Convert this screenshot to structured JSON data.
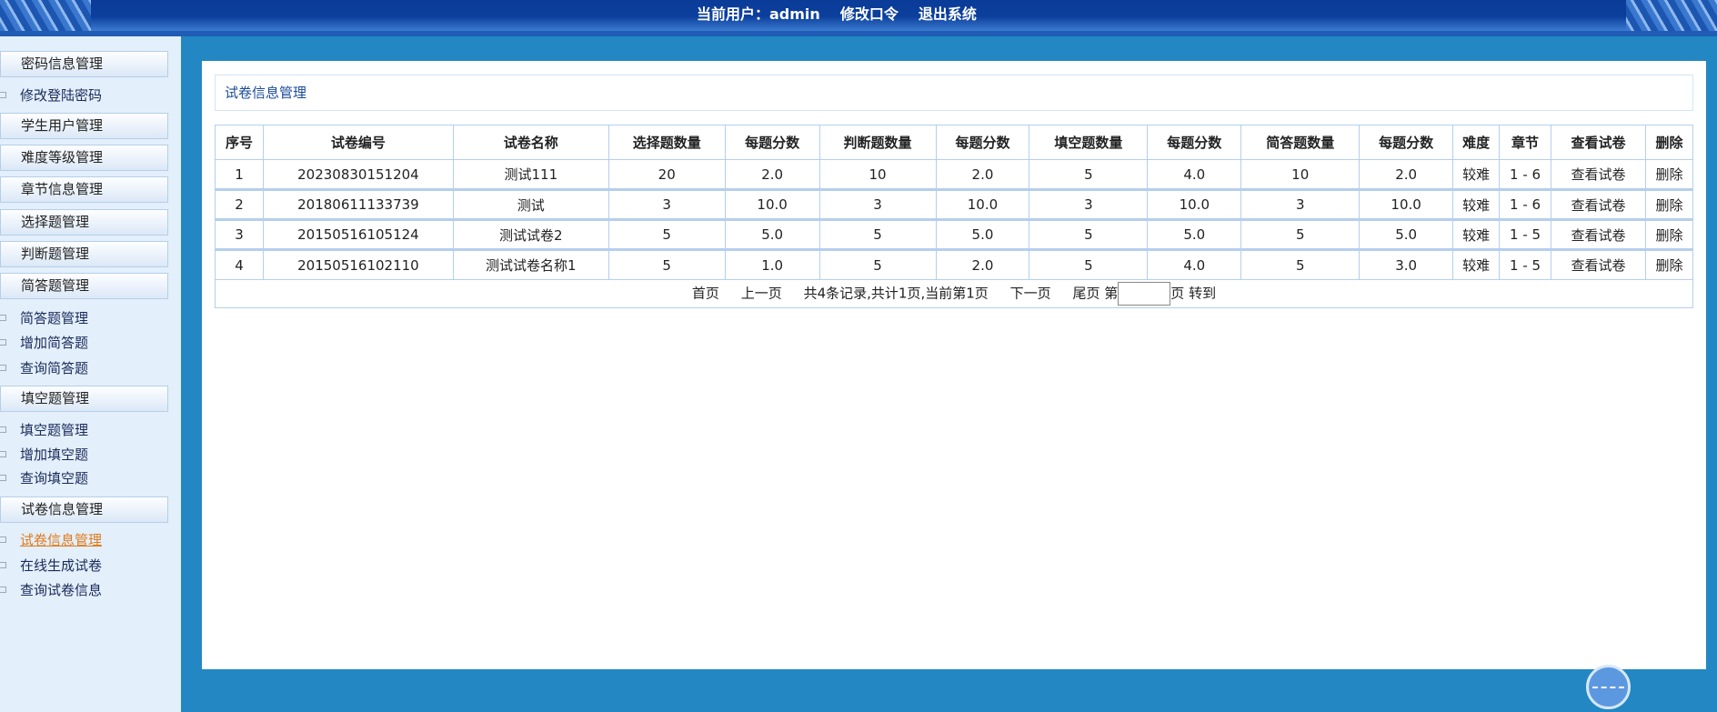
{
  "topbar": {
    "user_label": "当前用户：admin",
    "change_password": "修改口令",
    "logout": "退出系统"
  },
  "sidebar": [
    {
      "type": "header",
      "label": "密码信息管理"
    },
    {
      "type": "link",
      "label": "修改登陆密码"
    },
    {
      "type": "header",
      "label": "学生用户管理"
    },
    {
      "type": "header",
      "label": "难度等级管理"
    },
    {
      "type": "header",
      "label": "章节信息管理"
    },
    {
      "type": "header",
      "label": "选择题管理"
    },
    {
      "type": "header",
      "label": "判断题管理"
    },
    {
      "type": "header",
      "label": "简答题管理"
    },
    {
      "type": "link",
      "label": "简答题管理"
    },
    {
      "type": "link",
      "label": "增加简答题"
    },
    {
      "type": "link",
      "label": "查询简答题"
    },
    {
      "type": "header",
      "label": "填空题管理"
    },
    {
      "type": "link",
      "label": "填空题管理"
    },
    {
      "type": "link",
      "label": "增加填空题"
    },
    {
      "type": "link",
      "label": "查询填空题"
    },
    {
      "type": "header",
      "label": "试卷信息管理"
    },
    {
      "type": "link",
      "label": "试卷信息管理",
      "active": true
    },
    {
      "type": "link",
      "label": "在线生成试卷"
    },
    {
      "type": "link",
      "label": "查询试卷信息"
    }
  ],
  "main": {
    "title": "试卷信息管理",
    "columns": [
      "序号",
      "试卷编号",
      "试卷名称",
      "选择题数量",
      "每题分数",
      "判断题数量",
      "每题分数",
      "填空题数量",
      "每题分数",
      "简答题数量",
      "每题分数",
      "难度",
      "章节",
      "查看试卷",
      "删除"
    ],
    "rows": [
      [
        "1",
        "20230830151204",
        "测试111",
        "20",
        "2.0",
        "10",
        "2.0",
        "5",
        "4.0",
        "10",
        "2.0",
        "较难",
        "1 - 6",
        "查看试卷",
        "删除"
      ],
      [
        "2",
        "20180611133739",
        "测试",
        "3",
        "10.0",
        "3",
        "10.0",
        "3",
        "10.0",
        "3",
        "10.0",
        "较难",
        "1 - 6",
        "查看试卷",
        "删除"
      ],
      [
        "3",
        "20150516105124",
        "测试试卷2",
        "5",
        "5.0",
        "5",
        "5.0",
        "5",
        "5.0",
        "5",
        "5.0",
        "较难",
        "1 - 5",
        "查看试卷",
        "删除"
      ],
      [
        "4",
        "20150516102110",
        "测试试卷名称1",
        "5",
        "1.0",
        "5",
        "2.0",
        "5",
        "4.0",
        "5",
        "3.0",
        "较难",
        "1 - 5",
        "查看试卷",
        "删除"
      ]
    ],
    "pager": {
      "first": "首页",
      "prev": "上一页",
      "info": "共4条记录,共计1页,当前第1页",
      "next": "下一页",
      "last": "尾页",
      "page_prefix": "第",
      "page_value": "",
      "page_suffix": "页",
      "go": "转到"
    }
  },
  "colors": {
    "header_bg": "#0a3b98",
    "main_bg": "#2387c3",
    "sidebar_bg": "#e3effa",
    "active_link": "#e07b1e",
    "table_border": "#b4cfec"
  }
}
